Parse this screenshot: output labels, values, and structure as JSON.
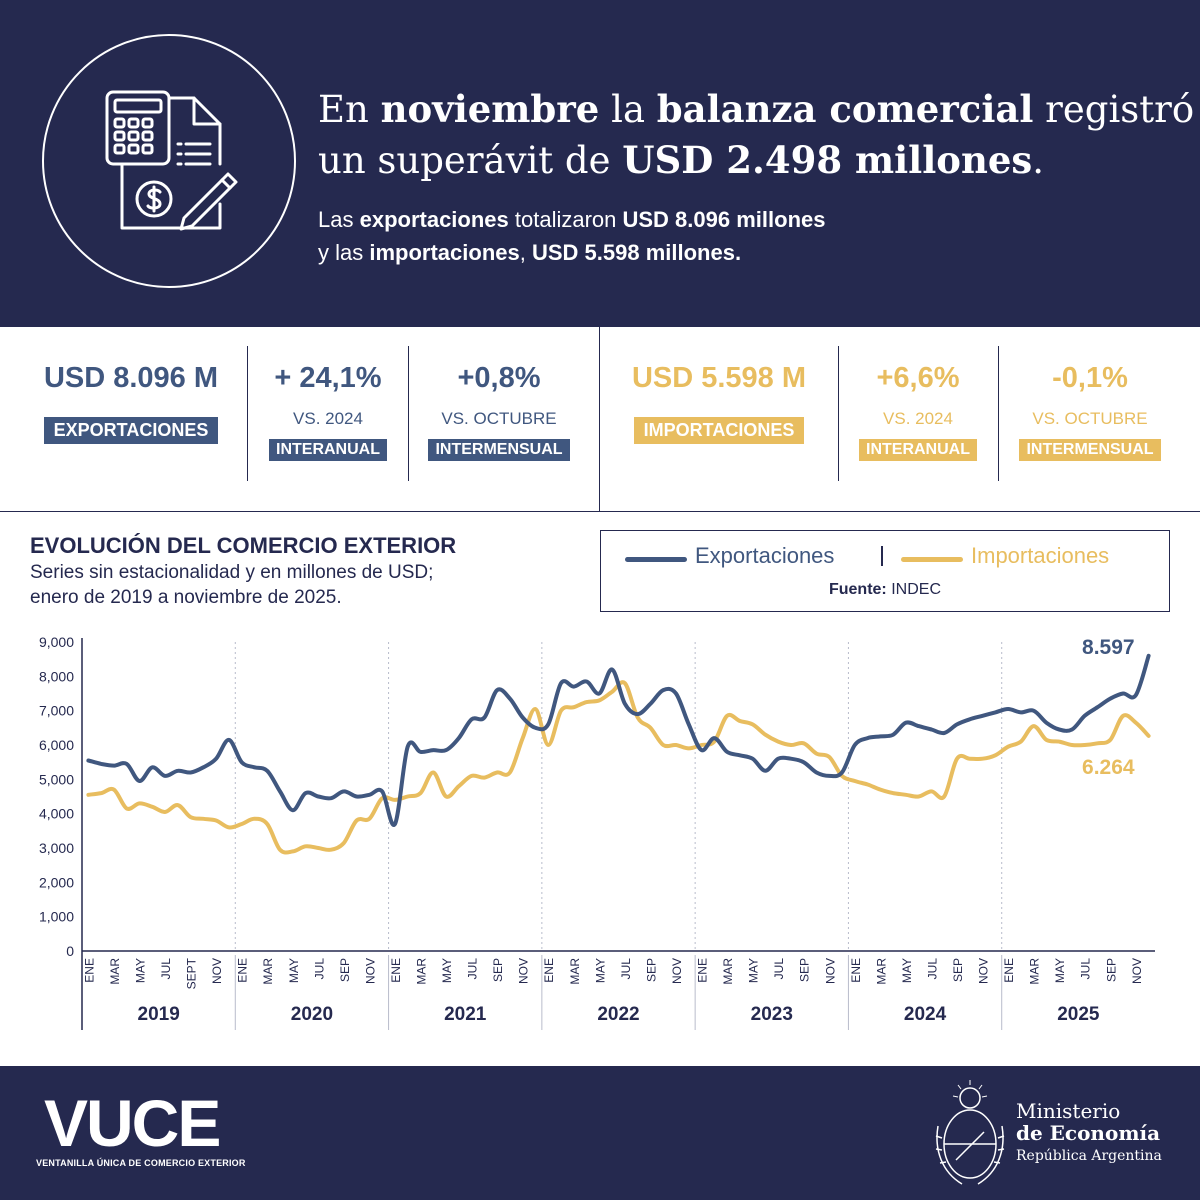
{
  "header": {
    "headline_l1_a": "En ",
    "headline_l1_b": "noviembre",
    "headline_l1_c": " la ",
    "headline_l1_d": "balanza comercial",
    "headline_l1_e": " registró",
    "headline_l2_a": "un superávit de ",
    "headline_l2_b": "USD 2.498 millones",
    "headline_l2_c": ".",
    "sub_l1_a": "Las ",
    "sub_l1_b": "exportaciones",
    "sub_l1_c": " totalizaron ",
    "sub_l1_d": "USD 8.096 millones",
    "sub_l2_a": "y las ",
    "sub_l2_b": "importaciones",
    "sub_l2_c": ", ",
    "sub_l2_d": "USD 5.598 millones."
  },
  "stats": {
    "exports": {
      "value": "USD 8.096 M",
      "label": "EXPORTACIONES",
      "yoy_value": "+ 24,1%",
      "yoy_ref": "VS. 2024",
      "yoy_tag": "INTERANUAL",
      "mom_value": "+0,8%",
      "mom_ref": "VS. OCTUBRE",
      "mom_tag": "INTERMENSUAL"
    },
    "imports": {
      "value": "USD 5.598 M",
      "label": "IMPORTACIONES",
      "yoy_value": "+6,6%",
      "yoy_ref": "VS. 2024",
      "yoy_tag": "INTERANUAL",
      "mom_value": "-0,1%",
      "mom_ref": "VS. OCTUBRE",
      "mom_tag": "INTERMENSUAL"
    }
  },
  "chart_section": {
    "title": "EVOLUCIÓN DEL COMERCIO EXTERIOR",
    "subtitle_l1": "Series sin estacionalidad y en millones de USD;",
    "subtitle_l2": "enero de 2019 a noviembre de 2025.",
    "legend_exports": "Exportaciones",
    "legend_imports": "Importaciones",
    "source_label": "Fuente:",
    "source_value": " INDEC"
  },
  "chart_data": {
    "type": "line",
    "ylim": [
      0,
      9000
    ],
    "yticks": [
      0,
      1000,
      2000,
      3000,
      4000,
      5000,
      6000,
      7000,
      8000,
      9000
    ],
    "ytick_labels": [
      "0",
      "1,000",
      "2,000",
      "3,000",
      "4,000",
      "5,000",
      "6,000",
      "7,000",
      "8,000",
      "9,000"
    ],
    "years": [
      "2019",
      "2020",
      "2021",
      "2022",
      "2023",
      "2024",
      "2025"
    ],
    "month_tick_labels": [
      "ENE",
      "MAR",
      "MAY",
      "JUL",
      "SEPT",
      "NOV",
      "ENE",
      "MAR",
      "MAY",
      "JUL",
      "SEP",
      "NOV",
      "ENE",
      "MAR",
      "MAY",
      "JUL",
      "SEP",
      "NOV",
      "ENE",
      "MAR",
      "MAY",
      "JUL",
      "SEP",
      "NOV",
      "ENE",
      "MAR",
      "MAY",
      "JUL",
      "SEP",
      "NOV",
      "ENE",
      "MAR",
      "MAY",
      "JUL",
      "SEP",
      "NOV",
      "ENE",
      "MAR",
      "MAY",
      "JUL",
      "SEP",
      "NOV"
    ],
    "series": [
      {
        "name": "Exportaciones",
        "color": "#40577f",
        "values": [
          5550,
          5450,
          5400,
          5450,
          4950,
          5350,
          5100,
          5250,
          5200,
          5350,
          5600,
          6150,
          5500,
          5350,
          5250,
          4650,
          4100,
          4600,
          4500,
          4450,
          4650,
          4500,
          4550,
          4650,
          3700,
          5950,
          5800,
          5850,
          5850,
          6200,
          6750,
          6800,
          7600,
          7350,
          6800,
          6500,
          6600,
          7800,
          7700,
          7850,
          7500,
          8200,
          7200,
          6900,
          7200,
          7600,
          7500,
          6600,
          5850,
          6200,
          5800,
          5700,
          5600,
          5250,
          5600,
          5600,
          5500,
          5200,
          5100,
          5200,
          6000,
          6200,
          6250,
          6300,
          6650,
          6550,
          6450,
          6350,
          6600,
          6750,
          6850,
          6950,
          7050,
          6950,
          7000,
          6650,
          6450,
          6450,
          6850,
          7100,
          7350,
          7500,
          7450,
          8597
        ],
        "end_label": "8.597"
      },
      {
        "name": "Importaciones",
        "color": "#e8bd5f",
        "values": [
          4550,
          4600,
          4700,
          4150,
          4300,
          4200,
          4050,
          4250,
          3900,
          3850,
          3800,
          3600,
          3700,
          3850,
          3700,
          2950,
          2900,
          3050,
          3000,
          2950,
          3150,
          3800,
          3850,
          4450,
          4400,
          4500,
          4600,
          5200,
          4500,
          4800,
          5100,
          5050,
          5200,
          5200,
          6200,
          7050,
          6000,
          7000,
          7100,
          7250,
          7300,
          7550,
          7800,
          6800,
          6500,
          6000,
          6000,
          5900,
          6000,
          6100,
          6850,
          6700,
          6600,
          6300,
          6100,
          6000,
          6050,
          5750,
          5650,
          5100,
          4950,
          4850,
          4700,
          4600,
          4550,
          4500,
          4650,
          4500,
          5600,
          5600,
          5600,
          5700,
          5950,
          6100,
          6550,
          6150,
          6100,
          6000,
          6000,
          6050,
          6150,
          6850,
          6650,
          6264
        ],
        "end_label": "6.264"
      }
    ]
  },
  "footer": {
    "vuce_logo": "VUCE",
    "vuce_sub": "VENTANILLA ÚNICA DE COMERCIO EXTERIOR",
    "ministry_l1": "Ministerio",
    "ministry_l2": "de Economía",
    "country": "República Argentina"
  }
}
